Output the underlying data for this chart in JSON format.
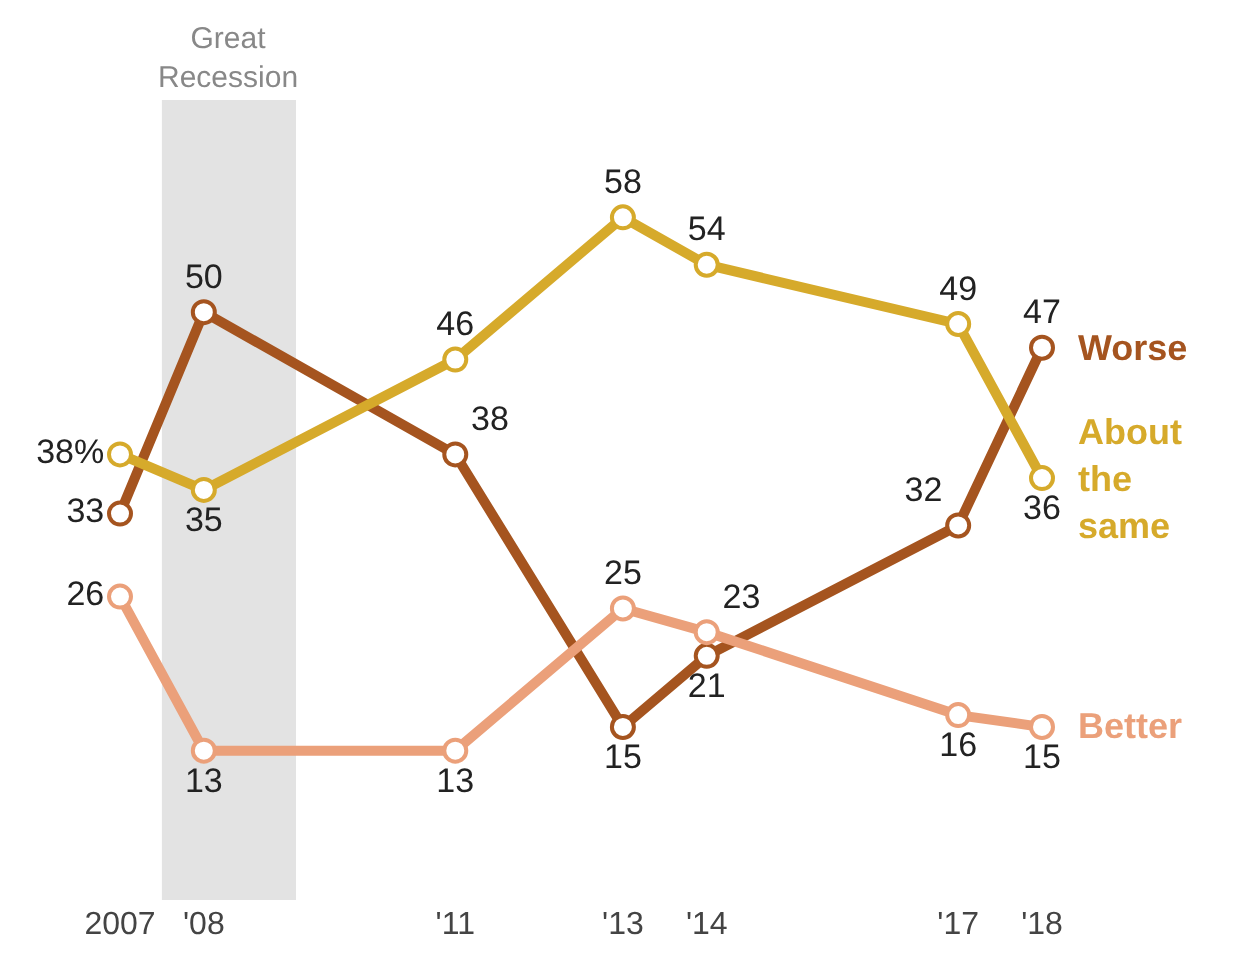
{
  "chart_data": {
    "type": "line",
    "x": [
      2007,
      2008,
      2011,
      2013,
      2014,
      2017,
      2018
    ],
    "xticks": [
      {
        "value": 2007,
        "label": "2007"
      },
      {
        "value": 2008,
        "label": "'08"
      },
      {
        "value": 2011,
        "label": "'11"
      },
      {
        "value": 2013,
        "label": "'13"
      },
      {
        "value": 2014,
        "label": "'14"
      },
      {
        "value": 2017,
        "label": "'17"
      },
      {
        "value": 2018,
        "label": "'18"
      }
    ],
    "xlim": [
      2007,
      2018
    ],
    "tick_labels": "x",
    "marker": "circle",
    "grid": false,
    "legend": false,
    "bands": [
      {
        "axis": "x",
        "from": 2007.5,
        "to": 2009.1,
        "label": "Great Recession",
        "color": "#e3e3e3"
      }
    ],
    "series": [
      {
        "name": "Worse",
        "color": "#a5541f",
        "values": [
          33,
          50,
          38,
          15,
          21,
          32,
          47
        ],
        "value_labels": [
          "33",
          "50",
          "38",
          "15",
          "21",
          "32",
          "47"
        ]
      },
      {
        "name": "About the same",
        "color": "#d6aa2b",
        "values": [
          38,
          35,
          46,
          58,
          54,
          49,
          36
        ],
        "value_labels": [
          "38%",
          "35",
          "46",
          "58",
          "54",
          "49",
          "36"
        ]
      },
      {
        "name": "Better",
        "color": "#eba07a",
        "values": [
          26,
          13,
          13,
          25,
          23,
          16,
          15
        ],
        "value_labels": [
          "26",
          "13",
          "13",
          "25",
          "23",
          "16",
          "15"
        ]
      }
    ]
  }
}
